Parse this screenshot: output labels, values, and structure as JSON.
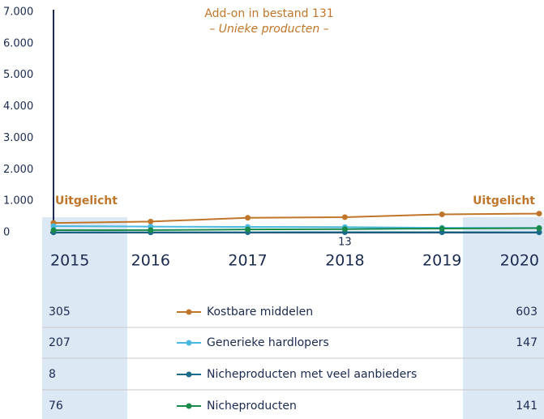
{
  "chart_data": {
    "type": "line",
    "title": "Add-on in bestand 131",
    "subtitle": "– Unieke producten –",
    "highlights": [
      "Uitgelicht",
      "Uitgelicht"
    ],
    "categories": [
      "2015",
      "2016",
      "2017",
      "2018",
      "2019",
      "2020"
    ],
    "series": [
      {
        "name": "Kostbare middelen",
        "color": "#c0762a",
        "values": [
          305,
          350,
          470,
          490,
          580,
          603
        ]
      },
      {
        "name": "Generieke hardlopers",
        "color": "#4ab8e0",
        "values": [
          207,
          190,
          180,
          175,
          150,
          147
        ]
      },
      {
        "name": "Nicheproducten met veel aanbieders",
        "color": "#1a6a8a",
        "values": [
          8,
          10,
          11,
          13,
          12,
          10
        ]
      },
      {
        "name": "Nicheproducten",
        "color": "#1a8a4a",
        "values": [
          76,
          80,
          100,
          110,
          130,
          141
        ]
      }
    ],
    "ylim": [
      0,
      7000
    ],
    "yticks": [
      0,
      {
        "value": 1000,
        "label": "1.000"
      },
      {
        "value": 2000,
        "label": "2.000"
      },
      {
        "value": 3000,
        "label": "3.000"
      },
      {
        "value": 4000,
        "label": "4.000"
      },
      {
        "value": 5000,
        "label": "5.000"
      },
      {
        "value": 6000,
        "label": "6.000"
      },
      {
        "value": 7000,
        "label": "7.000"
      }
    ]
  }
}
